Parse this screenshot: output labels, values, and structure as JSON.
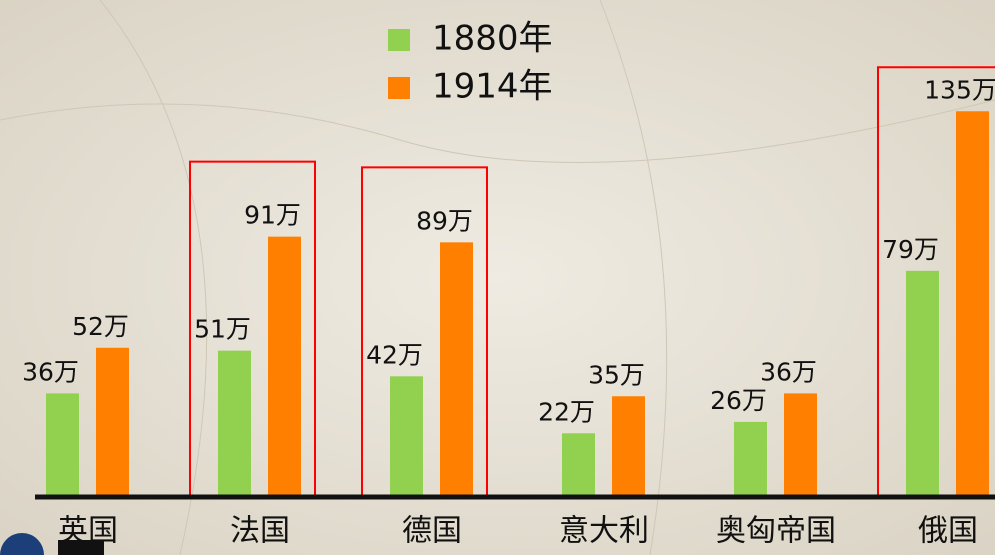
{
  "chart_data": {
    "type": "bar",
    "categories": [
      "英国",
      "法国",
      "德国",
      "意大利",
      "奥匈帝国",
      "俄国"
    ],
    "series": [
      {
        "name": "1880年",
        "color": "#92d050",
        "values": [
          36,
          51,
          42,
          22,
          26,
          79
        ],
        "value_labels": [
          "36万",
          "51万",
          "42万",
          "22万",
          "26万",
          "79万"
        ]
      },
      {
        "name": "1914年",
        "color": "#ff8000",
        "values": [
          52,
          91,
          89,
          35,
          36,
          135
        ],
        "value_labels": [
          "52万",
          "91万",
          "89万",
          "35万",
          "36万",
          "135万"
        ]
      }
    ],
    "highlight_indices": [
      1,
      2,
      5
    ],
    "highlight_color": "#ff0000"
  }
}
